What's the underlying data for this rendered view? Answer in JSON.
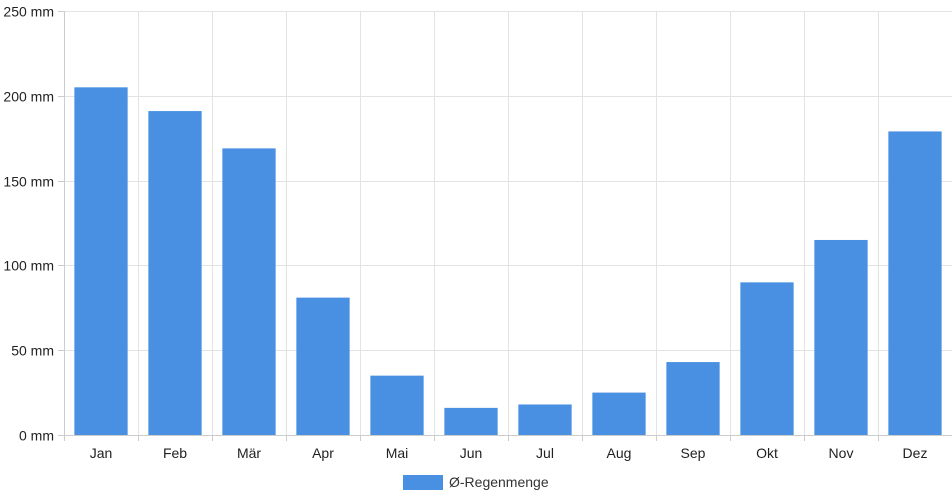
{
  "chart_data": {
    "type": "bar",
    "categories": [
      "Jan",
      "Feb",
      "Mär",
      "Apr",
      "Mai",
      "Jun",
      "Jul",
      "Aug",
      "Sep",
      "Okt",
      "Nov",
      "Dez"
    ],
    "series": [
      {
        "name": "Ø-Regenmenge",
        "values": [
          205,
          191,
          169,
          81,
          35,
          16,
          18,
          25,
          43,
          90,
          115,
          179
        ],
        "color": "#4a90e2"
      }
    ],
    "y_unit_suffix": " mm",
    "ylim": [
      0,
      250
    ],
    "y_ticks": [
      0,
      50,
      100,
      150,
      200,
      250
    ],
    "grid": true,
    "legend_position": "bottom-center"
  }
}
